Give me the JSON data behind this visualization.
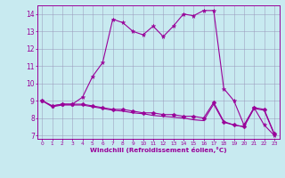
{
  "line1_x": [
    0,
    1,
    2,
    3,
    4,
    5,
    6,
    7,
    8,
    9,
    10,
    11,
    12,
    13,
    14,
    15,
    16,
    17,
    18,
    19,
    20,
    21,
    22,
    23
  ],
  "line1_y": [
    9.0,
    8.7,
    8.8,
    8.8,
    9.2,
    10.4,
    11.2,
    13.7,
    13.5,
    13.0,
    12.8,
    13.3,
    12.7,
    13.3,
    14.0,
    13.9,
    14.2,
    14.2,
    9.7,
    9.0,
    7.6,
    8.6,
    7.6,
    7.0
  ],
  "line2_x": [
    0,
    1,
    2,
    3,
    4,
    5,
    6,
    7,
    8,
    9,
    10,
    11,
    12,
    13,
    14,
    15,
    16,
    17,
    18,
    19,
    20,
    21,
    22,
    23
  ],
  "line2_y": [
    9.0,
    8.7,
    8.8,
    8.8,
    8.8,
    8.7,
    8.6,
    8.5,
    8.5,
    8.4,
    8.3,
    8.3,
    8.2,
    8.2,
    8.1,
    8.1,
    8.0,
    8.9,
    7.8,
    7.6,
    7.5,
    8.6,
    8.5,
    7.1
  ],
  "line3_x": [
    0,
    1,
    2,
    3,
    4,
    5,
    6,
    7,
    8,
    9,
    10,
    11,
    12,
    13,
    14,
    15,
    16,
    17,
    18,
    19,
    20,
    21,
    22,
    23
  ],
  "line3_y": [
    9.0,
    8.65,
    8.75,
    8.75,
    8.75,
    8.65,
    8.55,
    8.45,
    8.4,
    8.3,
    8.25,
    8.15,
    8.1,
    8.05,
    8.0,
    7.9,
    7.85,
    8.8,
    7.75,
    7.6,
    7.5,
    8.55,
    8.45,
    7.05
  ],
  "line_color": "#990099",
  "bg_color": "#c8eaf0",
  "grid_color": "#9999bb",
  "xlabel": "Windchill (Refroidissement éolien,°C)",
  "ylim": [
    6.8,
    14.5
  ],
  "xlim": [
    -0.5,
    23.5
  ],
  "yticks": [
    7,
    8,
    9,
    10,
    11,
    12,
    13,
    14
  ],
  "xticks": [
    0,
    1,
    2,
    3,
    4,
    5,
    6,
    7,
    8,
    9,
    10,
    11,
    12,
    13,
    14,
    15,
    16,
    17,
    18,
    19,
    20,
    21,
    22,
    23
  ]
}
